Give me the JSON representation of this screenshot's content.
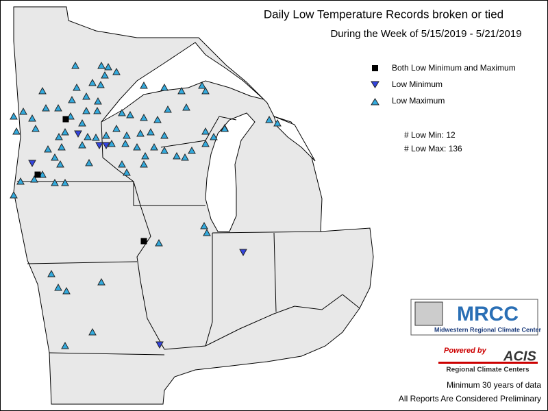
{
  "header": {
    "title": "Daily Low Temperature Records broken or tied",
    "subtitle": "During the Week of 5/15/2019 - 5/21/2019"
  },
  "legend": {
    "items": [
      {
        "label": "Both Low Minimum and Maximum"
      },
      {
        "label": "Low Minimum"
      },
      {
        "label": "Low Maximum"
      }
    ]
  },
  "counts": [
    "# Low Min: 12",
    "# Low Max: 136"
  ],
  "logos": {
    "mrcc": "MRCC",
    "mrcc_name": "Midwestern Regional Climate Center",
    "powered": "Powered by",
    "acis": "ACIS",
    "acis_name": "Regional Climate Centers"
  },
  "notes": [
    "Minimum 30 years of data",
    "All Reports Are Considered Preliminary"
  ]
}
